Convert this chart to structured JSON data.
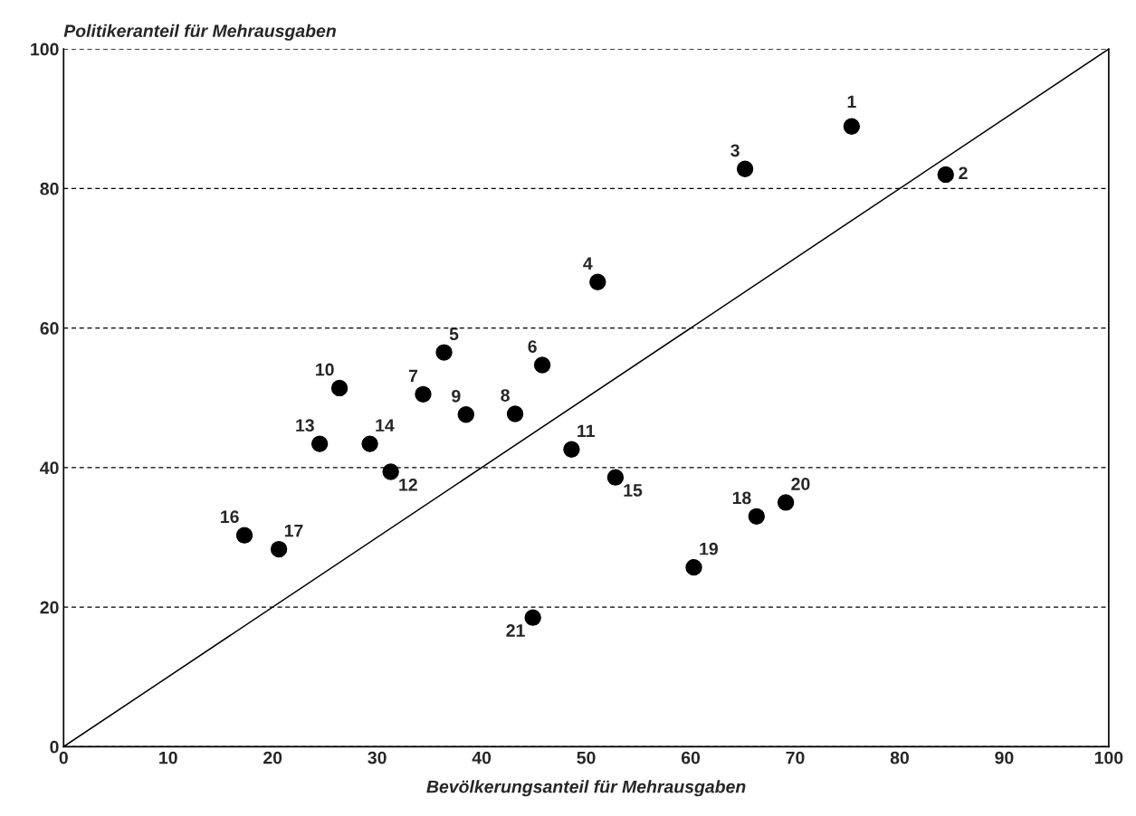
{
  "chart_data": {
    "type": "scatter",
    "xlabel": "Bevölkerungsanteil für Mehrausgaben",
    "ylabel": "Politikeranteil für Mehrausgaben",
    "xlim": [
      0,
      100
    ],
    "ylim": [
      0,
      100
    ],
    "xticks": [
      0,
      10,
      20,
      30,
      40,
      50,
      60,
      70,
      80,
      90,
      100
    ],
    "yticks": [
      0,
      20,
      40,
      60,
      80,
      100
    ],
    "grid": "y",
    "series": [
      {
        "marker": "circle",
        "color": "#000000",
        "x": [
          75.4,
          84.4,
          65.2,
          51.1,
          36.4,
          45.8,
          34.4,
          43.2,
          38.5,
          26.4,
          48.6,
          31.3,
          24.5,
          29.3,
          52.8,
          17.3,
          20.6,
          66.3,
          60.3,
          69.1,
          44.9
        ],
        "values": [
          88.9,
          82.0,
          82.8,
          66.6,
          56.5,
          54.7,
          50.5,
          47.7,
          47.6,
          51.4,
          42.6,
          39.4,
          43.4,
          43.4,
          38.6,
          30.3,
          28.3,
          33.0,
          25.7,
          35.0,
          18.5
        ]
      },
      {
        "type": "line",
        "color": "#000000",
        "line_style": "solid",
        "x": [
          0,
          100
        ],
        "values": [
          0,
          100
        ]
      }
    ],
    "annotations": [
      {
        "text": "1",
        "x": 75.4,
        "y": 88.9
      },
      {
        "text": "2",
        "x": 84.4,
        "y": 82.0
      },
      {
        "text": "3",
        "x": 65.2,
        "y": 82.8
      },
      {
        "text": "4",
        "x": 51.1,
        "y": 66.6
      },
      {
        "text": "5",
        "x": 36.4,
        "y": 56.5
      },
      {
        "text": "6",
        "x": 45.8,
        "y": 54.7
      },
      {
        "text": "7",
        "x": 34.4,
        "y": 50.5
      },
      {
        "text": "8",
        "x": 43.2,
        "y": 47.7
      },
      {
        "text": "9",
        "x": 38.5,
        "y": 47.6
      },
      {
        "text": "10",
        "x": 26.4,
        "y": 51.4
      },
      {
        "text": "11",
        "x": 48.6,
        "y": 42.6
      },
      {
        "text": "12",
        "x": 31.3,
        "y": 39.4
      },
      {
        "text": "13",
        "x": 24.5,
        "y": 43.4
      },
      {
        "text": "14",
        "x": 29.3,
        "y": 43.4
      },
      {
        "text": "15",
        "x": 52.8,
        "y": 38.6
      },
      {
        "text": "16",
        "x": 17.3,
        "y": 30.3
      },
      {
        "text": "17",
        "x": 20.6,
        "y": 28.3
      },
      {
        "text": "18",
        "x": 66.3,
        "y": 33.0
      },
      {
        "text": "19",
        "x": 60.3,
        "y": 25.7
      },
      {
        "text": "20",
        "x": 69.1,
        "y": 35.0
      },
      {
        "text": "21",
        "x": 44.9,
        "y": 18.5
      }
    ]
  }
}
